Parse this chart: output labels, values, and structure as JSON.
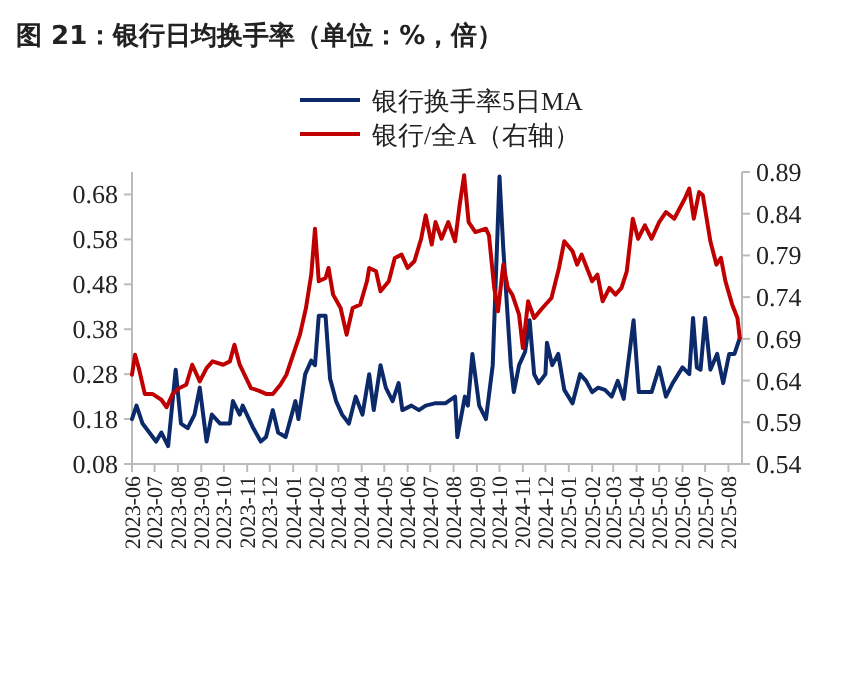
{
  "chart_data": {
    "type": "line",
    "title": "图 21：银行日均换手率（单位：%，倍）",
    "xlim": [
      "2023-06",
      "2025-08-19"
    ],
    "xticks": [
      "2023-06",
      "2023-07",
      "2023-08",
      "2023-09",
      "2023-10",
      "2023-11",
      "2023-12",
      "2024-01",
      "2024-02",
      "2024-03",
      "2024-04",
      "2024-05",
      "2024-06",
      "2024-07",
      "2024-08",
      "2024-09",
      "2024-10",
      "2024-11",
      "2024-12",
      "2025-01",
      "2025-02",
      "2025-03",
      "2025-04",
      "2025-05",
      "2025-06",
      "2025-07",
      "2025-08"
    ],
    "ylim": [
      0.08,
      0.73
    ],
    "yticks": [
      0.08,
      0.18,
      0.28,
      0.38,
      0.48,
      0.58,
      0.68
    ],
    "y2lim": [
      0.54,
      0.89
    ],
    "y2ticks": [
      0.54,
      0.59,
      0.64,
      0.69,
      0.74,
      0.79,
      0.84,
      0.89
    ],
    "legend": "top",
    "grid": false,
    "series": [
      {
        "name": "银行换手率5日MA",
        "color": "#0c2a6a",
        "x": [
          "2023-06-01",
          "2023-06-07",
          "2023-06-15",
          "2023-06-24",
          "2023-07-03",
          "2023-07-10",
          "2023-07-19",
          "2023-07-29",
          "2023-08-05",
          "2023-08-14",
          "2023-08-23",
          "2023-08-30",
          "2023-09-08",
          "2023-09-15",
          "2023-09-26",
          "2023-10-09",
          "2023-10-13",
          "2023-10-22",
          "2023-10-26",
          "2023-11-09",
          "2023-11-19",
          "2023-11-26",
          "2023-12-05",
          "2023-12-12",
          "2023-12-22",
          "2024-01-04",
          "2024-01-08",
          "2024-01-17",
          "2024-01-25",
          "2024-01-30",
          "2024-02-04",
          "2024-02-13",
          "2024-02-19",
          "2024-02-27",
          "2024-03-06",
          "2024-03-15",
          "2024-03-24",
          "2024-04-02",
          "2024-04-11",
          "2024-04-17",
          "2024-04-26",
          "2024-05-03",
          "2024-05-12",
          "2024-05-20",
          "2024-05-25",
          "2024-06-06",
          "2024-06-16",
          "2024-06-25",
          "2024-07-07",
          "2024-07-21",
          "2024-08-03",
          "2024-08-06",
          "2024-08-16",
          "2024-08-20",
          "2024-08-26",
          "2024-09-04",
          "2024-09-13",
          "2024-09-22",
          "2024-10-01",
          "2024-10-06",
          "2024-10-11",
          "2024-10-16",
          "2024-10-20",
          "2024-10-27",
          "2024-11-04",
          "2024-11-10",
          "2024-11-16",
          "2024-11-22",
          "2024-12-01",
          "2024-12-03",
          "2024-12-10",
          "2024-12-18",
          "2024-12-26",
          "2025-01-06",
          "2025-01-16",
          "2025-01-24",
          "2025-02-01",
          "2025-02-09",
          "2025-02-18",
          "2025-02-27",
          "2025-03-07",
          "2025-03-15",
          "2025-03-28",
          "2025-04-04",
          "2025-04-12",
          "2025-04-21",
          "2025-05-01",
          "2025-05-10",
          "2025-05-19",
          "2025-06-01",
          "2025-06-10",
          "2025-06-15",
          "2025-06-20",
          "2025-06-25",
          "2025-07-01",
          "2025-07-08",
          "2025-07-17",
          "2025-07-25",
          "2025-08-02",
          "2025-08-09",
          "2025-08-16"
        ],
        "values": [
          0.18,
          0.21,
          0.17,
          0.15,
          0.13,
          0.15,
          0.12,
          0.29,
          0.17,
          0.16,
          0.19,
          0.25,
          0.13,
          0.19,
          0.17,
          0.17,
          0.22,
          0.19,
          0.21,
          0.16,
          0.13,
          0.14,
          0.2,
          0.15,
          0.14,
          0.22,
          0.18,
          0.28,
          0.31,
          0.3,
          0.41,
          0.41,
          0.27,
          0.22,
          0.19,
          0.17,
          0.23,
          0.19,
          0.28,
          0.2,
          0.3,
          0.25,
          0.22,
          0.26,
          0.2,
          0.21,
          0.2,
          0.21,
          0.215,
          0.215,
          0.23,
          0.14,
          0.23,
          0.21,
          0.325,
          0.21,
          0.18,
          0.3,
          0.72,
          0.56,
          0.43,
          0.3,
          0.24,
          0.3,
          0.33,
          0.4,
          0.28,
          0.26,
          0.28,
          0.35,
          0.3,
          0.325,
          0.245,
          0.215,
          0.28,
          0.265,
          0.24,
          0.25,
          0.245,
          0.23,
          0.265,
          0.225,
          0.4,
          0.24,
          0.24,
          0.24,
          0.295,
          0.23,
          0.26,
          0.295,
          0.28,
          0.405,
          0.295,
          0.29,
          0.405,
          0.29,
          0.325,
          0.26,
          0.325,
          0.325,
          0.36
        ]
      },
      {
        "name": "银行/全A（右轴）",
        "color": "#c00000",
        "axis": "y2",
        "x": [
          "2023-06-01",
          "2023-06-05",
          "2023-06-10",
          "2023-06-18",
          "2023-06-28",
          "2023-07-10",
          "2023-07-17",
          "2023-07-25",
          "2023-08-03",
          "2023-08-12",
          "2023-08-20",
          "2023-08-30",
          "2023-09-08",
          "2023-09-16",
          "2023-09-30",
          "2023-10-09",
          "2023-10-15",
          "2023-10-22",
          "2023-11-06",
          "2023-11-16",
          "2023-11-26",
          "2023-12-05",
          "2023-12-15",
          "2023-12-23",
          "2024-01-01",
          "2024-01-10",
          "2024-01-18",
          "2024-01-25",
          "2024-01-30",
          "2024-02-04",
          "2024-02-13",
          "2024-02-17",
          "2024-02-23",
          "2024-03-04",
          "2024-03-12",
          "2024-03-20",
          "2024-03-30",
          "2024-04-08",
          "2024-04-11",
          "2024-04-20",
          "2024-04-26",
          "2024-05-07",
          "2024-05-15",
          "2024-05-24",
          "2024-06-01",
          "2024-06-10",
          "2024-06-19",
          "2024-06-25",
          "2024-07-03",
          "2024-07-08",
          "2024-07-16",
          "2024-07-25",
          "2024-08-03",
          "2024-08-09",
          "2024-08-15",
          "2024-08-21",
          "2024-08-30",
          "2024-09-13",
          "2024-09-17",
          "2024-09-24",
          "2024-09-29",
          "2024-10-06",
          "2024-10-12",
          "2024-10-18",
          "2024-10-27",
          "2024-11-01",
          "2024-11-08",
          "2024-11-16",
          "2024-11-27",
          "2024-12-09",
          "2024-12-19",
          "2024-12-26",
          "2025-01-06",
          "2025-01-12",
          "2025-01-18",
          "2025-02-01",
          "2025-02-08",
          "2025-02-15",
          "2025-02-24",
          "2025-03-04",
          "2025-03-12",
          "2025-03-19",
          "2025-03-27",
          "2025-04-03",
          "2025-04-12",
          "2025-04-21",
          "2025-05-01",
          "2025-05-10",
          "2025-05-21",
          "2025-06-04",
          "2025-06-10",
          "2025-06-16",
          "2025-06-23",
          "2025-06-28",
          "2025-07-08",
          "2025-07-16",
          "2025-07-22",
          "2025-07-28",
          "2025-08-06",
          "2025-08-13",
          "2025-08-16"
        ],
        "values": [
          0.647,
          0.671,
          0.655,
          0.624,
          0.624,
          0.617,
          0.608,
          0.624,
          0.631,
          0.635,
          0.659,
          0.639,
          0.655,
          0.663,
          0.659,
          0.663,
          0.683,
          0.659,
          0.631,
          0.628,
          0.624,
          0.624,
          0.635,
          0.647,
          0.671,
          0.695,
          0.727,
          0.767,
          0.822,
          0.759,
          0.763,
          0.775,
          0.743,
          0.727,
          0.695,
          0.727,
          0.731,
          0.759,
          0.775,
          0.771,
          0.747,
          0.759,
          0.787,
          0.791,
          0.775,
          0.783,
          0.81,
          0.838,
          0.803,
          0.83,
          0.81,
          0.83,
          0.807,
          0.85,
          0.886,
          0.83,
          0.818,
          0.822,
          0.814,
          0.751,
          0.723,
          0.779,
          0.751,
          0.743,
          0.719,
          0.679,
          0.735,
          0.715,
          0.727,
          0.739,
          0.775,
          0.807,
          0.795,
          0.779,
          0.791,
          0.759,
          0.767,
          0.735,
          0.751,
          0.743,
          0.751,
          0.771,
          0.834,
          0.81,
          0.826,
          0.81,
          0.83,
          0.842,
          0.834,
          0.858,
          0.87,
          0.834,
          0.866,
          0.862,
          0.807,
          0.779,
          0.787,
          0.759,
          0.731,
          0.715,
          0.691
        ]
      }
    ]
  }
}
